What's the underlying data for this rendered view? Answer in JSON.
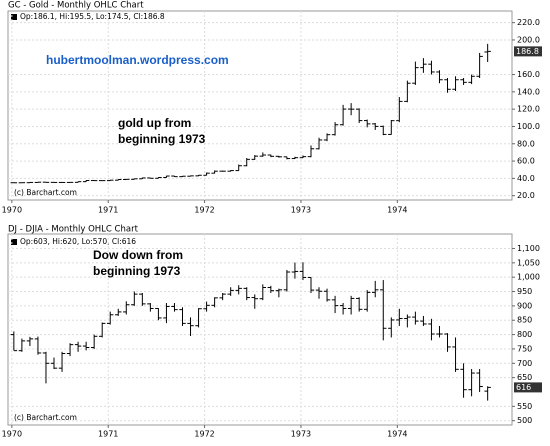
{
  "chart_data": [
    {
      "type": "ohlc",
      "title": "GC - Gold - Monthly OHLC Chart",
      "info": "Op:186.1, Hi:195.5, Lo:174.5, Cl:186.8",
      "source": "(c) Barchart.com",
      "annotations": [
        {
          "lines": [
            "hubertmoolman.wordpress.com"
          ]
        },
        {
          "lines": [
            "gold up from",
            "beginning 1973"
          ]
        }
      ],
      "color": "#000000",
      "open": [
        35.0,
        34.9,
        35.0,
        35.3,
        35.6,
        35.4,
        35.3,
        35.3,
        35.4,
        36.2,
        37.5,
        37.4,
        37.4,
        37.9,
        38.7,
        38.9,
        39.5,
        40.5,
        40.1,
        41.0,
        42.7,
        42.0,
        42.5,
        42.9,
        43.6,
        46.0,
        48.3,
        48.3,
        49.0,
        54.6,
        62.0,
        65.7,
        67.0,
        65.5,
        64.9,
        62.9,
        63.9,
        65.1,
        74.2,
        84.4,
        90.5,
        102.0,
        120.1,
        120.0,
        106.8,
        103.0,
        100.1,
        90.8,
        106.7,
        129.0,
        150.0,
        168.0,
        172.0,
        163.0,
        154.0,
        143.0,
        154.0,
        151.0,
        158.0,
        186.1
      ],
      "high": [
        35.4,
        35.3,
        35.6,
        35.8,
        35.8,
        35.6,
        35.5,
        35.6,
        36.4,
        37.8,
        37.8,
        37.6,
        38.2,
        38.9,
        39.2,
        39.8,
        40.8,
        40.8,
        41.3,
        43.0,
        42.9,
        42.8,
        43.2,
        43.9,
        46.8,
        49.2,
        49.0,
        49.5,
        56.0,
        63.5,
        67.0,
        70.0,
        67.5,
        66.0,
        65.0,
        65.0,
        66.5,
        78.0,
        87.0,
        92.0,
        105.0,
        125.0,
        127.0,
        121.0,
        108.0,
        104.0,
        101.0,
        107.5,
        134.0,
        153.0,
        175.0,
        179.0,
        176.0,
        165.0,
        156.0,
        158.0,
        156.0,
        160.0,
        185.0,
        195.5
      ],
      "low": [
        34.8,
        34.8,
        34.9,
        35.1,
        35.2,
        35.2,
        35.1,
        35.1,
        35.2,
        36.0,
        37.1,
        37.1,
        37.2,
        37.7,
        38.5,
        38.7,
        39.3,
        39.8,
        39.9,
        40.8,
        41.7,
        41.8,
        42.2,
        42.6,
        43.4,
        45.6,
        47.8,
        48.0,
        48.8,
        54.0,
        61.5,
        65.0,
        64.5,
        64.0,
        62.0,
        62.5,
        63.5,
        64.5,
        73.5,
        83.0,
        89.5,
        101.0,
        113.0,
        104.0,
        99.0,
        96.0,
        90.0,
        90.5,
        105.0,
        128.0,
        148.0,
        162.0,
        160.0,
        150.0,
        139.0,
        141.0,
        148.0,
        149.0,
        156.0,
        174.5
      ],
      "close": [
        34.9,
        35.0,
        35.3,
        35.6,
        35.4,
        35.3,
        35.3,
        35.4,
        36.2,
        37.5,
        37.4,
        37.4,
        37.9,
        38.7,
        38.9,
        39.5,
        40.5,
        40.1,
        41.0,
        42.7,
        42.0,
        42.5,
        42.9,
        43.6,
        46.0,
        48.3,
        48.3,
        49.0,
        54.6,
        62.0,
        65.7,
        67.0,
        65.5,
        64.9,
        62.9,
        63.9,
        65.1,
        74.2,
        84.4,
        90.5,
        102.0,
        120.1,
        120.0,
        106.8,
        103.0,
        100.1,
        90.8,
        106.7,
        129.0,
        150.0,
        168.0,
        172.0,
        163.0,
        154.0,
        143.0,
        154.0,
        151.0,
        158.0,
        181.0,
        186.8
      ],
      "xlim": [
        1969.96,
        1975.19
      ],
      "xticks": [
        1970,
        1971,
        1972,
        1973,
        1974
      ],
      "ylim": [
        15,
        230
      ],
      "yticks": [
        {
          "value": 20,
          "label": "20.0"
        },
        {
          "value": 40,
          "label": "40.0"
        },
        {
          "value": 60,
          "label": "60.0"
        },
        {
          "value": 80,
          "label": "80.0"
        },
        {
          "value": 100,
          "label": "100.0"
        },
        {
          "value": 120,
          "label": "120.0"
        },
        {
          "value": 140,
          "label": "140.0"
        },
        {
          "value": 160,
          "label": "160.0"
        },
        {
          "value": 200,
          "label": "200.0"
        },
        {
          "value": 220,
          "label": "220.0"
        }
      ],
      "grid": true
    },
    {
      "type": "ohlc",
      "title": "DJ - DJIA - Monthly OHLC Chart",
      "info": "Op:603, Hi:620, Lo:570, Cl:616",
      "source": "(c) Barchart.com",
      "annotations": [
        {
          "lines": [
            "Dow down from",
            "beginning 1973"
          ]
        }
      ],
      "color": "#000000",
      "open": [
        800,
        744,
        778,
        785,
        736,
        700,
        683,
        734,
        765,
        760,
        755,
        794,
        839,
        869,
        879,
        904,
        941,
        907,
        891,
        858,
        898,
        887,
        839,
        831,
        890,
        902,
        928,
        941,
        954,
        961,
        929,
        925,
        964,
        953,
        956,
        1018,
        1020,
        999,
        955,
        951,
        921,
        901,
        891,
        926,
        888,
        947,
        956,
        822,
        851,
        856,
        861,
        847,
        837,
        802,
        802,
        757,
        679,
        608,
        666,
        603
      ],
      "high": [
        811,
        786,
        792,
        793,
        740,
        720,
        740,
        770,
        775,
        775,
        800,
        842,
        880,
        890,
        916,
        950,
        945,
        910,
        892,
        910,
        910,
        895,
        860,
        892,
        915,
        930,
        945,
        965,
        972,
        965,
        940,
        975,
        970,
        960,
        1025,
        1051,
        1052,
        1000,
        965,
        960,
        935,
        910,
        935,
        930,
        955,
        987,
        990,
        860,
        890,
        870,
        880,
        865,
        855,
        830,
        805,
        790,
        700,
        680,
        680,
        620
      ],
      "low": [
        745,
        740,
        760,
        730,
        630,
        680,
        670,
        725,
        740,
        745,
        750,
        790,
        835,
        865,
        870,
        900,
        900,
        880,
        850,
        840,
        880,
        830,
        795,
        825,
        880,
        895,
        920,
        935,
        940,
        920,
        890,
        920,
        945,
        930,
        950,
        995,
        990,
        945,
        925,
        915,
        875,
        870,
        870,
        880,
        880,
        930,
        780,
        790,
        830,
        825,
        835,
        830,
        780,
        790,
        740,
        670,
        580,
        585,
        600,
        570
      ],
      "close": [
        744,
        778,
        785,
        736,
        700,
        683,
        734,
        765,
        760,
        755,
        794,
        839,
        869,
        879,
        904,
        941,
        907,
        891,
        858,
        898,
        887,
        839,
        831,
        890,
        902,
        928,
        941,
        954,
        961,
        929,
        925,
        964,
        953,
        956,
        1018,
        1020,
        999,
        955,
        951,
        921,
        901,
        891,
        926,
        888,
        947,
        956,
        822,
        851,
        856,
        861,
        847,
        837,
        802,
        802,
        757,
        679,
        608,
        666,
        619,
        616
      ],
      "xlim": [
        1969.96,
        1975.19
      ],
      "xticks": [
        1970,
        1971,
        1972,
        1973,
        1974
      ],
      "ylim": [
        485,
        1140
      ],
      "yticks": [
        {
          "value": 500,
          "label": "500"
        },
        {
          "value": 550,
          "label": "550"
        },
        {
          "value": 650,
          "label": "650"
        },
        {
          "value": 700,
          "label": "700"
        },
        {
          "value": 750,
          "label": "750"
        },
        {
          "value": 800,
          "label": "800"
        },
        {
          "value": 850,
          "label": "850"
        },
        {
          "value": 900,
          "label": "900"
        },
        {
          "value": 950,
          "label": "950"
        },
        {
          "value": 1000,
          "label": "1,000"
        },
        {
          "value": 1050,
          "label": "1,050"
        },
        {
          "value": 1100,
          "label": "1,100"
        }
      ],
      "grid": true
    }
  ]
}
